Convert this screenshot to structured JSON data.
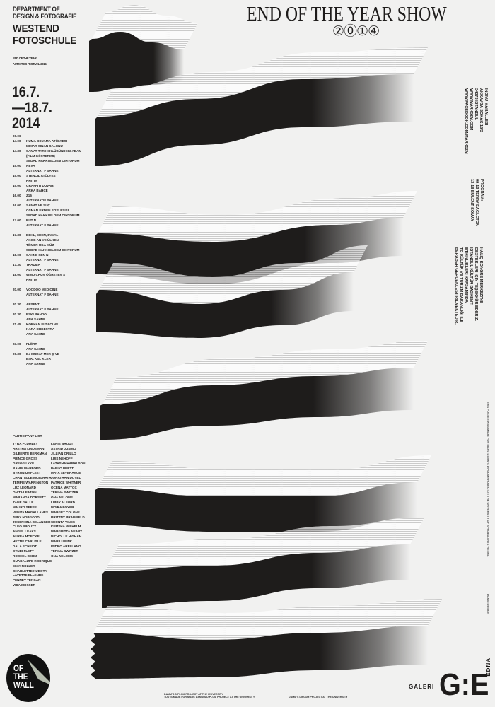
{
  "header": {
    "department": [
      "DEPARTMENT OF",
      "DESIGN & FOTOGRAFIE"
    ],
    "school": [
      "WESTEND",
      "FOTOSCHULE"
    ],
    "festival": [
      "END OF THE YEAR",
      "ACTIVITIES FESTIVAL 2014"
    ],
    "dates": [
      "16.7.",
      "—18.7.",
      "2014"
    ]
  },
  "title": {
    "main": "END OF THE YEAR SHOW",
    "year": "②⓪①④"
  },
  "schedule": {
    "date": "06.06",
    "events": [
      {
        "time": "14.00",
        "lines": [
          "KUMA BOYAMA ATÖLYESI",
          "MIMAR SINAN SALONU"
        ]
      },
      {
        "time": "14.30",
        "lines": [
          "SANAT TARIHI KLÜBÜNDEKI ADAM",
          "(FILM GÖSTERIMI)",
          "SEDAD HAKKI ELDEM OIHTORUM"
        ]
      },
      {
        "time": "15.00",
        "lines": [
          "NEVA",
          "ALTERNAT F SAHNE"
        ]
      },
      {
        "time": "15.00",
        "lines": [
          "STENCIL ATÖLYES",
          "RHITIM"
        ]
      },
      {
        "time": "15.00",
        "lines": [
          "GRAFFITI DUVARI",
          "ARKA BAHÇE"
        ]
      },
      {
        "time": "16.00",
        "lines": [
          "Z16",
          "ALTERNATIF SAHNE"
        ]
      },
      {
        "time": "16.00",
        "lines": [
          "SANAT VE SUÇ",
          "OSMAN ERDEN SÖYLESISI",
          "SEDAD HAKKI ELDEM OIHTORUM"
        ]
      },
      {
        "time": "17.00",
        "lines": [
          "RUT N",
          "ALTERNAT F SAHNE"
        ]
      },
      {
        "time": "17.30",
        "gap": true,
        "lines": [
          "BEHL, EHEN, EVVAL",
          "AKOB AN VE ÜLKEN",
          "TÖMER UGA MÜZ",
          "SEDAD HAKKI ELDEM OIHTORUM"
        ]
      },
      {
        "time": "18.00",
        "lines": [
          "SAHNE SEN N",
          "ALTERNAT F SAHNE"
        ]
      },
      {
        "time": "17.30",
        "lines": [
          "TRAUMA",
          "ALTERNAT F SAHNE"
        ]
      },
      {
        "time": "18.00",
        "lines": [
          "WIND CHUN ÖĞRETEN S",
          "RHITIM"
        ]
      },
      {
        "time": "20.00",
        "gap": true,
        "lines": [
          "VOODOO MEDICINE",
          "ALTERNAT F SAHNE"
        ]
      },
      {
        "time": "20.30",
        "gap": true,
        "lines": [
          "APSENT",
          "ALTERNAT F SAHNE"
        ]
      },
      {
        "time": "20.30",
        "lines": [
          "ESKI BANDO",
          "ANA SAHNE"
        ]
      },
      {
        "time": "21.45",
        "lines": [
          "KORHAN FUTACI VE",
          "KARA ORKESTRA",
          "ANA SAHNE"
        ]
      },
      {
        "time": "23.00",
        "gap": true,
        "lines": [
          "FLÖRT",
          "ANA SAHNE"
        ]
      },
      {
        "time": "00.30",
        "lines": [
          "DJ MURAT MER Ç VE",
          "ESK. KSL KLER",
          "ANA SAHNE"
        ]
      }
    ]
  },
  "participants": {
    "heading": "PARTICIPANT LIST",
    "col1": [
      "TYRA PLUMLEY",
      "ARETHA LINDEMAN",
      "GILBERTE BERKMAN",
      "PRINCE GROSS",
      "GREGG LYKE",
      "RANDI WARFORD",
      "BYRON UMFLEET",
      "CHANTELLE MCELRATH",
      "TEMPIE WARRINGTON",
      "LUZ LEONARD",
      "ONITA LEATON",
      "MARANDA DORSETT",
      "ZANE GALLE",
      "MAURO SEESE",
      "VENITA MAGALLANES",
      "JUDY HOBGOOD",
      "JOSEPHINA BELANGER",
      "CLEO PROUTY",
      "ANGEL LEAKS",
      "AUREA MOECKEL",
      "HETTIE CARLISLE",
      "DALA SCHEIDT",
      "CYNDI FLETT",
      "ROCHEL BEHM",
      "GUADALUPE RODRIQUE",
      "ELVA ROLLER",
      "CHARLETTE KUBOTA",
      "LAVETTE ELLENBE",
      "PENNEY TENGAN",
      "VIDA MOSSER"
    ],
    "col2": [
      "LANIE BRODT",
      "ASTRID JUSINO",
      "JILLIAN CRILLO",
      "LUIS NEHOFF",
      "LATASHA HARALSON",
      "PABLO PUETT",
      "MAYA SEVERANCE",
      "JONATHAN DOYEL",
      "PATRICE WHITNER",
      "OCENA MATTOX",
      "TERINA SWITZER",
      "ONA NELOMS",
      "LIBBY ALFORD",
      "MOIRA POYER",
      "MARGET COLONE",
      "BRITTNY BRADFIELD",
      "SHONTA VINES",
      "KEMSHA WILHELM",
      "MARGUITTA NEARY",
      "NICHOLLE HIGHAM",
      "MARILU PINK",
      "ISIDRO ARELLANO",
      "TERINA SWITZER",
      "ONA NELOMS"
    ]
  },
  "sidebar_right": {
    "address": [
      "INGNU MAHALLESI",
      "AKKAVGA SOKAK 16/3",
      "34373 ISTANBUL",
      "WWW.MARK52M.COM",
      "WWW.FACEBOOK.COM/MARK52M"
    ],
    "program": [
      "PROGRAM:",
      "09-13  TERRY EAGLETON",
      "13-18  BÜLENT SOMAY"
    ],
    "thanks": [
      "HALIÇ KONGRE MERKEZI'NE",
      "DESTEKLERI IÇIN TEŞEKKÜR EDERIZ.",
      "ISTANBUL KÜLTÜR BAŞKENTI",
      "ETKINLIKLERI KAPSAMINDA",
      "TC KÜLTÜR VE TURIZM BAKANLIĞI ILE",
      "BERABER GERÇEKLEŞTIRILMEKTEDIR."
    ],
    "credit": "THIS POSTER WAS MADE FOR MARC DAMM'S DIPLOM PROJECT AT THE UNIVERSITY OF APPLIED ARTS VIENNA",
    "credit2": "DAMM DESIGN"
  },
  "footer": {
    "left": [
      "DAMM'S DIPLOM PROJECT AT THE UNIVERSITY",
      "TDD IS MADE FOR MARC DAMM'S DIPLOM PROJECT AT THE UNIVERSITY"
    ],
    "right": "DAMM'S DIPLOM PROJECT AT THE UNIVERSITY"
  },
  "logos": {
    "off_the_wall": [
      "OF",
      "THE",
      "WALL"
    ],
    "galeri": {
      "prefix": "GALERI",
      "mark": "G:E",
      "suffix": "EDNA"
    }
  },
  "colors": {
    "background": "#f1f1f0",
    "ink": "#1e1c1b",
    "peel": "#b7beb0"
  }
}
